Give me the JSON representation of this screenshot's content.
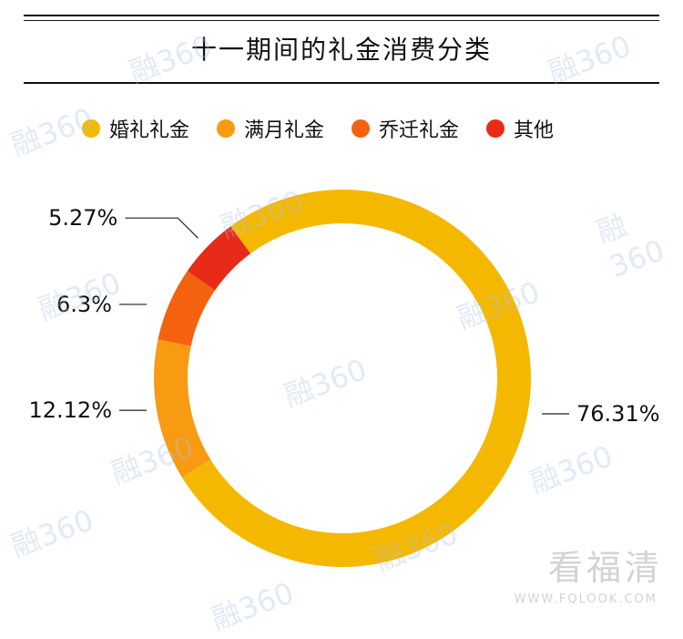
{
  "chart_data": {
    "type": "pie",
    "title": "十一期间的礼金消费分类",
    "legend_position": "top",
    "slices": [
      {
        "label": "婚礼礼金",
        "value": 76.31,
        "value_label": "76.31%",
        "color": "#F5B800"
      },
      {
        "label": "满月礼金",
        "value": 12.12,
        "value_label": "12.12%",
        "color": "#F89A12"
      },
      {
        "label": "乔迁礼金",
        "value": 6.3,
        "value_label": "6.3%",
        "color": "#F5620F"
      },
      {
        "label": "其他",
        "value": 5.27,
        "value_label": "5.27%",
        "color": "#E82A18"
      }
    ]
  },
  "watermark": {
    "text": "融360",
    "brand": "看福清",
    "brand_url": "WWW.FQLOOK.COM"
  }
}
